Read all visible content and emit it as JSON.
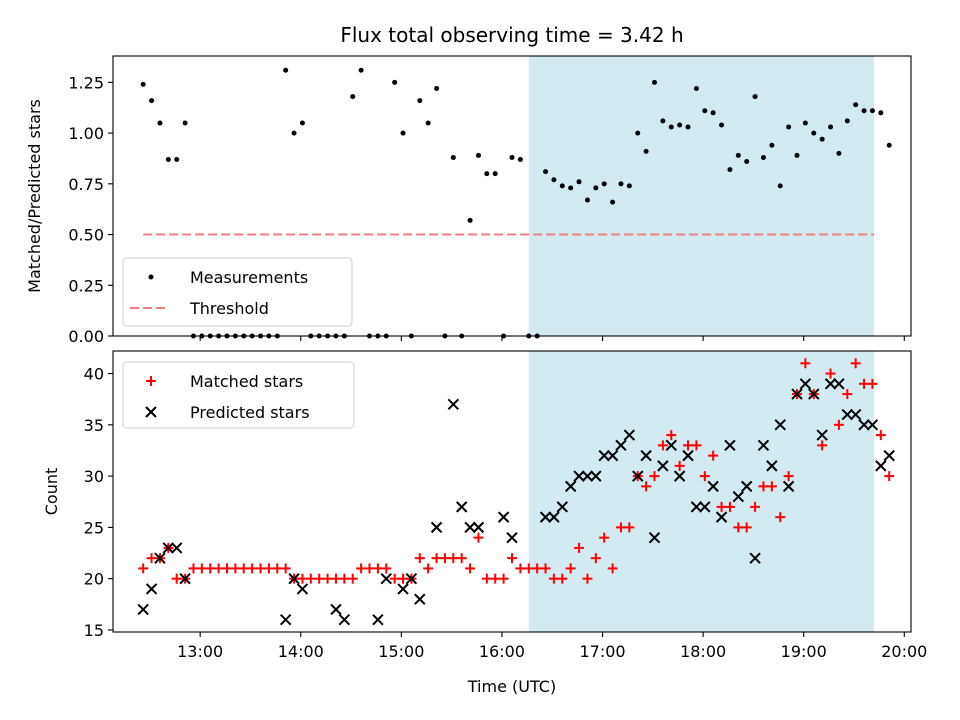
{
  "title": "Flux total observing time = 3.42 h",
  "shade_color": "#add8e6",
  "chart_data": [
    {
      "type": "scatter",
      "ylabel": "Matched/Predicted stars",
      "xlim": [
        "12:08",
        "20:04"
      ],
      "ylim": [
        0,
        1.38
      ],
      "yticks": [
        "0.00",
        "0.25",
        "0.50",
        "0.75",
        "1.00",
        "1.25"
      ],
      "shaded_span": [
        "16:16",
        "19:42"
      ],
      "legend": {
        "placement": "lower-left",
        "entries": [
          "Measurements",
          "Threshold"
        ]
      },
      "threshold": {
        "name": "Threshold",
        "y": 0.5,
        "x_range": [
          "12:26",
          "19:42"
        ],
        "color": "#f08080",
        "style": "dashed"
      },
      "series": [
        {
          "name": "Measurements",
          "color": "#000000",
          "marker": "dot",
          "points": [
            [
              "12:26",
              1.24
            ],
            [
              "12:31",
              1.16
            ],
            [
              "12:36",
              1.05
            ],
            [
              "12:41",
              0.87
            ],
            [
              "12:46",
              0.87
            ],
            [
              "12:51",
              1.05
            ],
            [
              "12:56",
              0.0
            ],
            [
              "13:01",
              0.0
            ],
            [
              "13:06",
              0.0
            ],
            [
              "13:11",
              0.0
            ],
            [
              "13:16",
              0.0
            ],
            [
              "13:21",
              0.0
            ],
            [
              "13:26",
              0.0
            ],
            [
              "13:31",
              0.0
            ],
            [
              "13:36",
              0.0
            ],
            [
              "13:41",
              0.0
            ],
            [
              "13:46",
              0.0
            ],
            [
              "13:51",
              1.31
            ],
            [
              "13:56",
              1.0
            ],
            [
              "14:01",
              1.05
            ],
            [
              "14:06",
              0.0
            ],
            [
              "14:11",
              0.0
            ],
            [
              "14:16",
              0.0
            ],
            [
              "14:21",
              0.0
            ],
            [
              "14:26",
              0.0
            ],
            [
              "14:31",
              1.18
            ],
            [
              "14:36",
              1.31
            ],
            [
              "14:41",
              0.0
            ],
            [
              "14:46",
              0.0
            ],
            [
              "14:51",
              0.0
            ],
            [
              "14:56",
              1.25
            ],
            [
              "15:01",
              1.0
            ],
            [
              "15:06",
              0.0
            ],
            [
              "15:11",
              1.16
            ],
            [
              "15:16",
              1.05
            ],
            [
              "15:21",
              1.22
            ],
            [
              "15:26",
              0.0
            ],
            [
              "15:31",
              0.88
            ],
            [
              "15:36",
              0.0
            ],
            [
              "15:41",
              0.57
            ],
            [
              "15:46",
              0.89
            ],
            [
              "15:51",
              0.8
            ],
            [
              "15:56",
              0.8
            ],
            [
              "16:01",
              0.0
            ],
            [
              "16:06",
              0.88
            ],
            [
              "16:11",
              0.87
            ],
            [
              "16:16",
              0.0
            ],
            [
              "16:21",
              0.0
            ],
            [
              "16:26",
              0.81
            ],
            [
              "16:31",
              0.77
            ],
            [
              "16:36",
              0.74
            ],
            [
              "16:41",
              0.73
            ],
            [
              "16:46",
              0.76
            ],
            [
              "16:51",
              0.67
            ],
            [
              "16:56",
              0.73
            ],
            [
              "17:01",
              0.75
            ],
            [
              "17:06",
              0.66
            ],
            [
              "17:11",
              0.75
            ],
            [
              "17:16",
              0.74
            ],
            [
              "17:21",
              1.0
            ],
            [
              "17:26",
              0.91
            ],
            [
              "17:31",
              1.25
            ],
            [
              "17:36",
              1.06
            ],
            [
              "17:41",
              1.03
            ],
            [
              "17:46",
              1.04
            ],
            [
              "17:51",
              1.03
            ],
            [
              "17:56",
              1.22
            ],
            [
              "18:01",
              1.11
            ],
            [
              "18:06",
              1.1
            ],
            [
              "18:11",
              1.04
            ],
            [
              "18:16",
              0.82
            ],
            [
              "18:21",
              0.89
            ],
            [
              "18:26",
              0.86
            ],
            [
              "18:31",
              1.18
            ],
            [
              "18:36",
              0.88
            ],
            [
              "18:41",
              0.94
            ],
            [
              "18:46",
              0.74
            ],
            [
              "18:51",
              1.03
            ],
            [
              "18:56",
              0.89
            ],
            [
              "19:01",
              1.05
            ],
            [
              "19:06",
              1.0
            ],
            [
              "19:11",
              0.97
            ],
            [
              "19:16",
              1.03
            ],
            [
              "19:21",
              0.9
            ],
            [
              "19:26",
              1.06
            ],
            [
              "19:31",
              1.14
            ],
            [
              "19:36",
              1.11
            ],
            [
              "19:41",
              1.11
            ],
            [
              "19:46",
              1.1
            ],
            [
              "19:51",
              0.94
            ]
          ]
        }
      ]
    },
    {
      "type": "scatter",
      "xlabel": "Time (UTC)",
      "ylabel": "Count",
      "xlim": [
        "12:08",
        "20:04"
      ],
      "ylim": [
        14.8,
        42.2
      ],
      "yticks": [
        "15",
        "20",
        "25",
        "30",
        "35",
        "40"
      ],
      "xticks": [
        "13:00",
        "14:00",
        "15:00",
        "16:00",
        "17:00",
        "18:00",
        "19:00",
        "20:00"
      ],
      "shaded_span": [
        "16:16",
        "19:42"
      ],
      "legend": {
        "placement": "upper-left",
        "entries": [
          "Matched stars",
          "Predicted stars"
        ]
      },
      "series": [
        {
          "name": "Matched stars",
          "color": "#ff0000",
          "marker": "plus",
          "points": [
            [
              "12:26",
              21
            ],
            [
              "12:31",
              22
            ],
            [
              "12:36",
              22
            ],
            [
              "12:41",
              23
            ],
            [
              "12:46",
              20
            ],
            [
              "12:51",
              20
            ],
            [
              "12:56",
              21
            ],
            [
              "13:01",
              21
            ],
            [
              "13:06",
              21
            ],
            [
              "13:11",
              21
            ],
            [
              "13:16",
              21
            ],
            [
              "13:21",
              21
            ],
            [
              "13:26",
              21
            ],
            [
              "13:31",
              21
            ],
            [
              "13:36",
              21
            ],
            [
              "13:41",
              21
            ],
            [
              "13:46",
              21
            ],
            [
              "13:51",
              21
            ],
            [
              "13:56",
              20
            ],
            [
              "14:01",
              20
            ],
            [
              "14:06",
              20
            ],
            [
              "14:11",
              20
            ],
            [
              "14:16",
              20
            ],
            [
              "14:21",
              20
            ],
            [
              "14:26",
              20
            ],
            [
              "14:31",
              20
            ],
            [
              "14:36",
              21
            ],
            [
              "14:41",
              21
            ],
            [
              "14:46",
              21
            ],
            [
              "14:51",
              21
            ],
            [
              "14:56",
              20
            ],
            [
              "15:01",
              20
            ],
            [
              "15:06",
              20
            ],
            [
              "15:11",
              22
            ],
            [
              "15:16",
              21
            ],
            [
              "15:21",
              22
            ],
            [
              "15:26",
              22
            ],
            [
              "15:31",
              22
            ],
            [
              "15:36",
              22
            ],
            [
              "15:41",
              21
            ],
            [
              "15:46",
              24
            ],
            [
              "15:51",
              20
            ],
            [
              "15:56",
              20
            ],
            [
              "16:01",
              20
            ],
            [
              "16:06",
              22
            ],
            [
              "16:11",
              21
            ],
            [
              "16:16",
              21
            ],
            [
              "16:21",
              21
            ],
            [
              "16:26",
              21
            ],
            [
              "16:31",
              20
            ],
            [
              "16:36",
              20
            ],
            [
              "16:41",
              21
            ],
            [
              "16:46",
              23
            ],
            [
              "16:51",
              20
            ],
            [
              "16:56",
              22
            ],
            [
              "17:01",
              24
            ],
            [
              "17:06",
              21
            ],
            [
              "17:11",
              25
            ],
            [
              "17:16",
              25
            ],
            [
              "17:21",
              30
            ],
            [
              "17:26",
              29
            ],
            [
              "17:31",
              30
            ],
            [
              "17:36",
              33
            ],
            [
              "17:41",
              34
            ],
            [
              "17:46",
              31
            ],
            [
              "17:51",
              33
            ],
            [
              "17:56",
              33
            ],
            [
              "18:01",
              30
            ],
            [
              "18:06",
              32
            ],
            [
              "18:11",
              27
            ],
            [
              "18:16",
              27
            ],
            [
              "18:21",
              25
            ],
            [
              "18:26",
              25
            ],
            [
              "18:31",
              27
            ],
            [
              "18:36",
              29
            ],
            [
              "18:41",
              29
            ],
            [
              "18:46",
              26
            ],
            [
              "18:51",
              30
            ],
            [
              "18:56",
              38
            ],
            [
              "19:01",
              41
            ],
            [
              "19:06",
              38
            ],
            [
              "19:11",
              33
            ],
            [
              "19:16",
              40
            ],
            [
              "19:21",
              35
            ],
            [
              "19:26",
              38
            ],
            [
              "19:31",
              41
            ],
            [
              "19:36",
              39
            ],
            [
              "19:41",
              39
            ],
            [
              "19:46",
              34
            ],
            [
              "19:51",
              30
            ]
          ]
        },
        {
          "name": "Predicted stars",
          "color": "#000000",
          "marker": "x",
          "points": [
            [
              "12:26",
              17
            ],
            [
              "12:31",
              19
            ],
            [
              "12:36",
              22
            ],
            [
              "12:41",
              23
            ],
            [
              "12:46",
              23
            ],
            [
              "12:51",
              20
            ],
            [
              "13:51",
              16
            ],
            [
              "13:56",
              20
            ],
            [
              "14:01",
              19
            ],
            [
              "14:21",
              17
            ],
            [
              "14:26",
              16
            ],
            [
              "14:46",
              16
            ],
            [
              "14:51",
              20
            ],
            [
              "15:01",
              19
            ],
            [
              "15:06",
              20
            ],
            [
              "15:11",
              18
            ],
            [
              "15:21",
              25
            ],
            [
              "15:31",
              37
            ],
            [
              "15:36",
              27
            ],
            [
              "15:41",
              25
            ],
            [
              "15:46",
              25
            ],
            [
              "16:01",
              26
            ],
            [
              "16:06",
              24
            ],
            [
              "16:26",
              26
            ],
            [
              "16:31",
              26
            ],
            [
              "16:36",
              27
            ],
            [
              "16:41",
              29
            ],
            [
              "16:46",
              30
            ],
            [
              "16:51",
              30
            ],
            [
              "16:56",
              30
            ],
            [
              "17:01",
              32
            ],
            [
              "17:06",
              32
            ],
            [
              "17:11",
              33
            ],
            [
              "17:16",
              34
            ],
            [
              "17:21",
              30
            ],
            [
              "17:26",
              32
            ],
            [
              "17:31",
              24
            ],
            [
              "17:36",
              31
            ],
            [
              "17:41",
              33
            ],
            [
              "17:46",
              30
            ],
            [
              "17:51",
              32
            ],
            [
              "17:56",
              27
            ],
            [
              "18:01",
              27
            ],
            [
              "18:06",
              29
            ],
            [
              "18:11",
              26
            ],
            [
              "18:16",
              33
            ],
            [
              "18:21",
              28
            ],
            [
              "18:26",
              29
            ],
            [
              "18:31",
              22
            ],
            [
              "18:36",
              33
            ],
            [
              "18:41",
              31
            ],
            [
              "18:46",
              35
            ],
            [
              "18:51",
              29
            ],
            [
              "18:56",
              38
            ],
            [
              "19:01",
              39
            ],
            [
              "19:06",
              38
            ],
            [
              "19:11",
              34
            ],
            [
              "19:16",
              39
            ],
            [
              "19:21",
              39
            ],
            [
              "19:26",
              36
            ],
            [
              "19:31",
              36
            ],
            [
              "19:36",
              35
            ],
            [
              "19:41",
              35
            ],
            [
              "19:46",
              31
            ],
            [
              "19:51",
              32
            ]
          ]
        }
      ]
    }
  ]
}
